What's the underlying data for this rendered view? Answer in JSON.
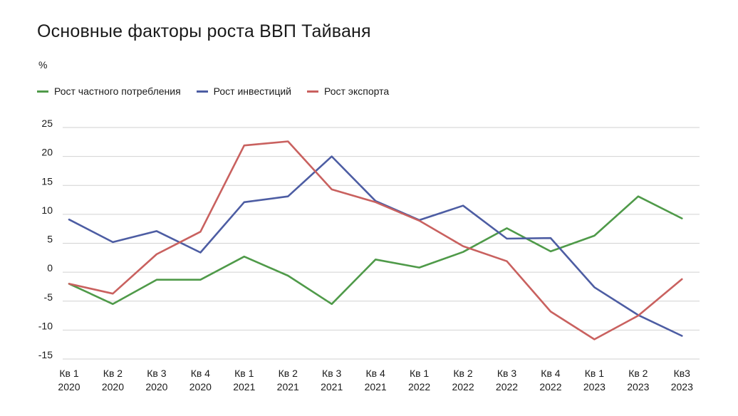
{
  "title": "Основные факторы роста ВВП Тайваня",
  "unit_label": "%",
  "chart_data": {
    "type": "line",
    "title": "Основные факторы роста ВВП Тайваня",
    "ylabel": "%",
    "xlabel": "",
    "ylim": [
      -15,
      25
    ],
    "yticks": [
      25,
      20,
      15,
      10,
      5,
      0,
      -5,
      -10,
      -15
    ],
    "grid": true,
    "legend_position": "top-left",
    "categories": [
      [
        "Кв 1",
        "2020"
      ],
      [
        "Кв 2",
        "2020"
      ],
      [
        "Кв 3",
        "2020"
      ],
      [
        "Кв 4",
        "2020"
      ],
      [
        "Кв 1",
        "2021"
      ],
      [
        "Кв 2",
        "2021"
      ],
      [
        "Кв 3",
        "2021"
      ],
      [
        "Кв 4",
        "2021"
      ],
      [
        "Кв 1",
        "2022"
      ],
      [
        "Кв 2",
        "2022"
      ],
      [
        "Кв 3",
        "2022"
      ],
      [
        "Кв 4",
        "2022"
      ],
      [
        "Кв 1",
        "2023"
      ],
      [
        "Кв 2",
        "2023"
      ],
      [
        "Кв3",
        "2023"
      ]
    ],
    "series": [
      {
        "name": "Рост частного потребления",
        "color": "#4f9a49",
        "values": [
          -2.0,
          -5.5,
          -1.3,
          -1.3,
          2.7,
          -0.6,
          -5.5,
          2.2,
          0.8,
          3.5,
          7.6,
          3.6,
          6.3,
          13.1,
          9.3
        ]
      },
      {
        "name": "Рост инвестиций",
        "color": "#4d5da3",
        "values": [
          9.1,
          5.2,
          7.1,
          3.4,
          12.1,
          13.1,
          20.0,
          12.3,
          9.0,
          11.5,
          5.8,
          5.9,
          -2.6,
          -7.4,
          -11.0
        ]
      },
      {
        "name": "Рост экспорта",
        "color": "#c9615f",
        "values": [
          -2.0,
          -3.7,
          3.1,
          7.0,
          21.9,
          22.6,
          14.3,
          12.1,
          8.9,
          4.5,
          1.9,
          -6.8,
          -11.6,
          -7.5,
          -1.2
        ]
      }
    ]
  }
}
